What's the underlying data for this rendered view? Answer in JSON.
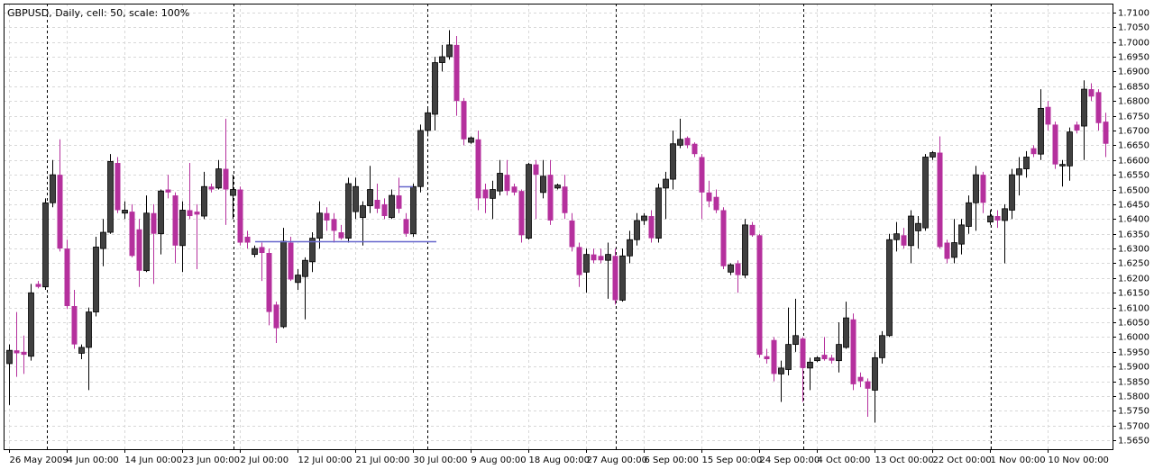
{
  "chart_data": {
    "type": "candlestick",
    "title": "GBPUSD, Daily, cell: 50, scale: 100%",
    "categories": [
      "26 May 2009",
      null,
      null,
      null,
      null,
      null,
      null,
      null,
      "4 Jun 00:00",
      null,
      null,
      null,
      null,
      null,
      null,
      null,
      "14 Jun 00:00",
      null,
      null,
      null,
      null,
      null,
      null,
      null,
      "23 Jun 00:00",
      null,
      null,
      null,
      null,
      null,
      null,
      null,
      "2 Jul 00:00",
      null,
      null,
      null,
      null,
      null,
      null,
      null,
      "12 Jul 00:00",
      null,
      null,
      null,
      null,
      null,
      null,
      null,
      "21 Jul 00:00",
      null,
      null,
      null,
      null,
      null,
      null,
      null,
      "30 Jul 00:00",
      null,
      null,
      null,
      null,
      null,
      null,
      null,
      "9 Aug 00:00",
      null,
      null,
      null,
      null,
      null,
      null,
      null,
      "18 Aug 00:00",
      null,
      null,
      null,
      null,
      null,
      null,
      null,
      "27 Aug 00:00",
      null,
      null,
      null,
      null,
      null,
      null,
      null,
      "6 Sep 00:00",
      null,
      null,
      null,
      null,
      null,
      null,
      null,
      "15 Sep 00:00",
      null,
      null,
      null,
      null,
      null,
      null,
      null,
      "24 Sep 00:00",
      null,
      null,
      null,
      null,
      null,
      null,
      null,
      "4 Oct 00:00",
      null,
      null,
      null,
      null,
      null,
      null,
      null,
      "13 Oct 00:00",
      null,
      null,
      null,
      null,
      null,
      null,
      null,
      "22 Oct 00:00",
      null,
      null,
      null,
      null,
      null,
      null,
      null,
      "1 Nov 00:00",
      null,
      null,
      null,
      null,
      null,
      null,
      null,
      "10 Nov 00:00",
      null,
      null,
      null,
      null,
      null,
      null,
      null,
      null
    ],
    "open": [
      1.591,
      1.5955,
      1.595,
      1.5935,
      1.618,
      1.617,
      1.6455,
      1.655,
      1.63,
      1.6105,
      1.5945,
      1.5965,
      1.6085,
      1.63,
      1.6355,
      1.659,
      1.642,
      1.6425,
      1.6365,
      1.6225,
      1.642,
      1.635,
      1.65,
      1.648,
      1.631,
      1.643,
      1.6425,
      1.641,
      1.651,
      1.6505,
      1.657,
      1.648,
      1.65,
      1.634,
      1.628,
      1.6305,
      1.6285,
      1.611,
      1.6035,
      1.632,
      1.6185,
      1.6205,
      1.6255,
      1.6335,
      1.642,
      1.64,
      1.6355,
      1.6335,
      1.6425,
      1.6405,
      1.6445,
      1.6465,
      1.645,
      1.6405,
      1.648,
      1.64,
      1.635,
      1.651,
      1.67,
      1.6755,
      1.693,
      1.695,
      1.699,
      1.68,
      1.666,
      1.667,
      1.65,
      1.647,
      1.6495,
      1.655,
      1.651,
      1.6495,
      1.6335,
      1.6585,
      1.649,
      1.655,
      1.6505,
      1.651,
      1.6395,
      1.6305,
      1.622,
      1.628,
      1.6275,
      1.626,
      1.6275,
      1.6125,
      1.6275,
      1.633,
      1.6395,
      1.641,
      1.6335,
      1.6505,
      1.6535,
      1.665,
      1.6675,
      1.6655,
      1.661,
      1.649,
      1.6475,
      1.643,
      1.622,
      1.625,
      1.621,
      1.638,
      1.6345,
      1.5935,
      1.599,
      1.5875,
      1.589,
      1.5975,
      1.5995,
      1.5895,
      1.592,
      1.594,
      1.593,
      1.592,
      1.5965,
      1.606,
      1.5865,
      1.585,
      1.582,
      1.593,
      1.6005,
      1.633,
      1.6345,
      1.631,
      1.636,
      1.637,
      1.661,
      1.6625,
      1.632,
      1.627,
      1.6315,
      1.6375,
      1.6455,
      1.655,
      1.639,
      1.641,
      1.6395,
      1.643,
      1.655,
      1.657,
      1.664,
      1.662,
      1.678,
      1.672,
      1.658,
      1.658,
      1.672,
      1.6715,
      1.684,
      1.683,
      1.673
    ],
    "high": [
      1.5975,
      1.6085,
      1.6005,
      1.618,
      1.619,
      1.647,
      1.66,
      1.667,
      1.633,
      1.616,
      1.5975,
      1.61,
      1.634,
      1.64,
      1.662,
      1.661,
      1.646,
      1.645,
      1.64,
      1.648,
      1.645,
      1.65,
      1.655,
      1.649,
      1.646,
      1.659,
      1.645,
      1.656,
      1.652,
      1.66,
      1.674,
      1.655,
      1.651,
      1.636,
      1.631,
      1.632,
      1.63,
      1.612,
      1.637,
      1.634,
      1.623,
      1.627,
      1.6355,
      1.646,
      1.644,
      1.642,
      1.638,
      1.654,
      1.654,
      1.646,
      1.658,
      1.652,
      1.647,
      1.65,
      1.654,
      1.642,
      1.652,
      1.672,
      1.678,
      1.695,
      1.699,
      1.704,
      1.702,
      1.681,
      1.668,
      1.67,
      1.652,
      1.653,
      1.66,
      1.66,
      1.652,
      1.65,
      1.659,
      1.66,
      1.66,
      1.66,
      1.652,
      1.655,
      1.642,
      1.632,
      1.63,
      1.63,
      1.63,
      1.632,
      1.63,
      1.63,
      1.636,
      1.642,
      1.642,
      1.643,
      1.652,
      1.656,
      1.67,
      1.674,
      1.668,
      1.666,
      1.662,
      1.653,
      1.65,
      1.644,
      1.625,
      1.626,
      1.64,
      1.639,
      1.635,
      1.596,
      1.6,
      1.592,
      1.61,
      1.613,
      1.6,
      1.593,
      1.5935,
      1.6,
      1.594,
      1.605,
      1.612,
      1.608,
      1.588,
      1.586,
      1.595,
      1.602,
      1.635,
      1.639,
      1.637,
      1.643,
      1.641,
      1.662,
      1.663,
      1.668,
      1.633,
      1.64,
      1.64,
      1.648,
      1.658,
      1.656,
      1.643,
      1.643,
      1.645,
      1.657,
      1.661,
      1.663,
      1.665,
      1.684,
      1.68,
      1.673,
      1.66,
      1.671,
      1.673,
      1.687,
      1.686,
      1.684,
      1.676
    ],
    "low": [
      1.577,
      1.5865,
      1.5875,
      1.592,
      1.6165,
      1.616,
      1.644,
      1.629,
      1.6095,
      1.596,
      1.5925,
      1.582,
      1.607,
      1.624,
      1.635,
      1.642,
      1.64,
      1.627,
      1.617,
      1.622,
      1.618,
      1.628,
      1.647,
      1.625,
      1.622,
      1.64,
      1.623,
      1.64,
      1.649,
      1.65,
      1.638,
      1.64,
      1.631,
      1.63,
      1.627,
      1.619,
      1.604,
      1.598,
      1.603,
      1.619,
      1.616,
      1.606,
      1.622,
      1.63,
      1.636,
      1.632,
      1.633,
      1.632,
      1.64,
      1.631,
      1.642,
      1.642,
      1.64,
      1.64,
      1.642,
      1.634,
      1.634,
      1.649,
      1.668,
      1.67,
      1.69,
      1.694,
      1.675,
      1.665,
      1.6655,
      1.643,
      1.642,
      1.64,
      1.648,
      1.648,
      1.648,
      1.632,
      1.633,
      1.64,
      1.647,
      1.638,
      1.65,
      1.64,
      1.629,
      1.617,
      1.615,
      1.625,
      1.625,
      1.613,
      1.611,
      1.612,
      1.625,
      1.631,
      1.638,
      1.632,
      1.632,
      1.64,
      1.65,
      1.664,
      1.664,
      1.661,
      1.64,
      1.644,
      1.642,
      1.623,
      1.621,
      1.615,
      1.62,
      1.634,
      1.593,
      1.591,
      1.585,
      1.578,
      1.587,
      1.595,
      1.578,
      1.582,
      1.5915,
      1.592,
      1.591,
      1.588,
      1.596,
      1.582,
      1.583,
      1.573,
      1.571,
      1.591,
      1.6,
      1.629,
      1.63,
      1.625,
      1.63,
      1.636,
      1.66,
      1.63,
      1.625,
      1.625,
      1.628,
      1.635,
      1.636,
      1.642,
      1.638,
      1.637,
      1.625,
      1.64,
      1.648,
      1.654,
      1.661,
      1.66,
      1.67,
      1.657,
      1.651,
      1.653,
      1.669,
      1.66,
      1.68,
      1.67,
      1.661
    ],
    "close": [
      1.5955,
      1.5945,
      1.594,
      1.615,
      1.617,
      1.6455,
      1.655,
      1.63,
      1.6105,
      1.5975,
      1.5965,
      1.6085,
      1.6305,
      1.6355,
      1.6595,
      1.643,
      1.643,
      1.6275,
      1.6225,
      1.642,
      1.635,
      1.6495,
      1.649,
      1.631,
      1.643,
      1.641,
      1.6415,
      1.651,
      1.65,
      1.657,
      1.65,
      1.65,
      1.632,
      1.632,
      1.63,
      1.6285,
      1.6085,
      1.603,
      1.6325,
      1.6195,
      1.621,
      1.626,
      1.6335,
      1.642,
      1.6395,
      1.636,
      1.6335,
      1.652,
      1.651,
      1.6445,
      1.65,
      1.6435,
      1.641,
      1.648,
      1.6435,
      1.635,
      1.651,
      1.67,
      1.676,
      1.693,
      1.695,
      1.699,
      1.68,
      1.667,
      1.6675,
      1.647,
      1.647,
      1.65,
      1.6555,
      1.6495,
      1.649,
      1.6345,
      1.6585,
      1.655,
      1.6545,
      1.6395,
      1.6515,
      1.642,
      1.6305,
      1.621,
      1.628,
      1.626,
      1.626,
      1.628,
      1.6125,
      1.6275,
      1.633,
      1.6395,
      1.641,
      1.6335,
      1.6505,
      1.6535,
      1.6655,
      1.667,
      1.665,
      1.662,
      1.649,
      1.646,
      1.643,
      1.624,
      1.6245,
      1.621,
      1.638,
      1.6345,
      1.594,
      1.5925,
      1.5875,
      1.5895,
      1.5975,
      1.6005,
      1.5895,
      1.5915,
      1.593,
      1.5925,
      1.592,
      1.5975,
      1.6065,
      1.584,
      1.585,
      1.5825,
      1.593,
      1.6005,
      1.633,
      1.635,
      1.631,
      1.641,
      1.6385,
      1.661,
      1.6625,
      1.6305,
      1.6265,
      1.632,
      1.638,
      1.6455,
      1.655,
      1.6455,
      1.641,
      1.6395,
      1.6435,
      1.655,
      1.657,
      1.661,
      1.662,
      1.6775,
      1.672,
      1.6585,
      1.6585,
      1.6695,
      1.67,
      1.684,
      1.6815,
      1.6725,
      1.6655
    ],
    "bull_color": "#404040",
    "bear_color": "#b5309d",
    "ylim": [
      1.562,
      1.713
    ],
    "yticks": [
      {
        "value": 1.565,
        "label": "1.5650"
      },
      {
        "value": 1.57,
        "label": "1.5700"
      },
      {
        "value": 1.575,
        "label": "1.5750"
      },
      {
        "value": 1.58,
        "label": "1.5800"
      },
      {
        "value": 1.585,
        "label": "1.5850"
      },
      {
        "value": 1.59,
        "label": "1.5900"
      },
      {
        "value": 1.595,
        "label": "1.5950"
      },
      {
        "value": 1.6,
        "label": "1.6000"
      },
      {
        "value": 1.605,
        "label": "1.6050"
      },
      {
        "value": 1.61,
        "label": "1.6100"
      },
      {
        "value": 1.615,
        "label": "1.6150"
      },
      {
        "value": 1.62,
        "label": "1.6200"
      },
      {
        "value": 1.625,
        "label": "1.6250"
      },
      {
        "value": 1.63,
        "label": "1.6300"
      },
      {
        "value": 1.635,
        "label": "1.6350"
      },
      {
        "value": 1.64,
        "label": "1.6400"
      },
      {
        "value": 1.645,
        "label": "1.6450"
      },
      {
        "value": 1.65,
        "label": "1.6500"
      },
      {
        "value": 1.655,
        "label": "1.6550"
      },
      {
        "value": 1.66,
        "label": "1.6600"
      },
      {
        "value": 1.665,
        "label": "1.6650"
      },
      {
        "value": 1.67,
        "label": "1.6700"
      },
      {
        "value": 1.675,
        "label": "1.6750"
      },
      {
        "value": 1.68,
        "label": "1.6800"
      },
      {
        "value": 1.685,
        "label": "1.6850"
      },
      {
        "value": 1.69,
        "label": "1.6900"
      },
      {
        "value": 1.695,
        "label": "1.6950"
      },
      {
        "value": 1.7,
        "label": "1.7000"
      },
      {
        "value": 1.705,
        "label": "1.7050"
      },
      {
        "value": 1.71,
        "label": "1.7100"
      }
    ],
    "grid": true
  }
}
